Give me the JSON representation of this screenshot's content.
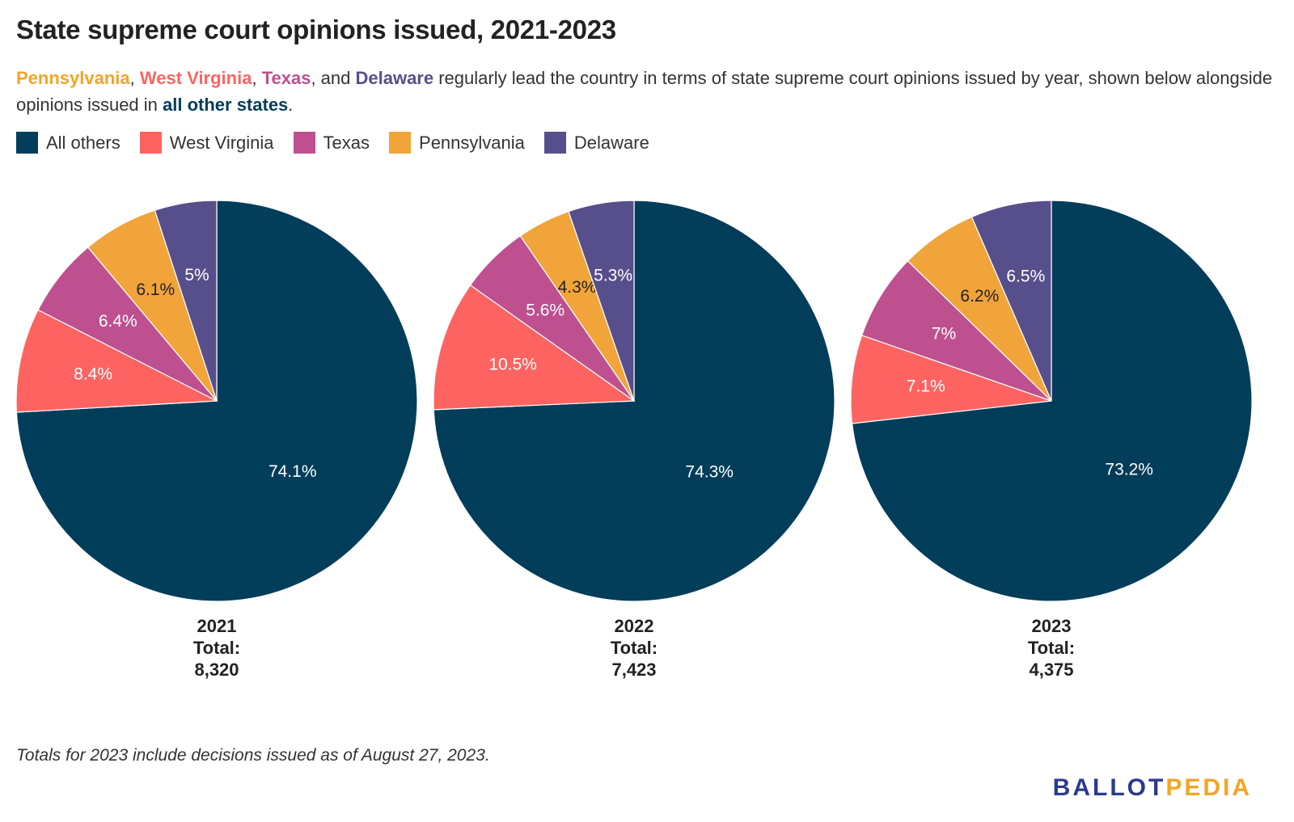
{
  "header": {
    "title": "State supreme court opinions issued, 2021-2023",
    "subtitle": {
      "pennsylvania": "Pennsylvania",
      "sep1": ", ",
      "west_virginia": "West Virginia",
      "sep2": ", ",
      "texas": "Texas",
      "sep3": ", and ",
      "delaware": "Delaware",
      "middle": " regularly lead the country in terms of state supreme court opinions issued by year, shown below alongside opinions issued in ",
      "all_other": "all other states",
      "end": "."
    }
  },
  "legend": [
    {
      "label": "All others",
      "color": "#023d5a"
    },
    {
      "label": "West Virginia",
      "color": "#fd6461"
    },
    {
      "label": "Texas",
      "color": "#bf5090"
    },
    {
      "label": "Pennsylvania",
      "color": "#f0a43a"
    },
    {
      "label": "Delaware",
      "color": "#574f8b"
    }
  ],
  "colors": {
    "pennsylvania": "#f3a526",
    "west_virginia": "#fd6461",
    "texas": "#bf5090",
    "delaware": "#574f8b",
    "all_others": "#023d5a"
  },
  "chart_data": [
    {
      "type": "pie",
      "year_label": "2021",
      "total_label": "Total:",
      "total_value": "8,320",
      "categories": [
        "All others",
        "West Virginia",
        "Texas",
        "Pennsylvania",
        "Delaware"
      ],
      "values": [
        74.1,
        8.4,
        6.4,
        6.1,
        5
      ],
      "labels": [
        "74.1%",
        "8.4%",
        "6.4%",
        "6.1%",
        "5%"
      ]
    },
    {
      "type": "pie",
      "year_label": "2022",
      "total_label": "Total:",
      "total_value": "7,423",
      "categories": [
        "All others",
        "West Virginia",
        "Texas",
        "Pennsylvania",
        "Delaware"
      ],
      "values": [
        74.3,
        10.5,
        5.6,
        4.3,
        5.3
      ],
      "labels": [
        "74.3%",
        "10.5%",
        "5.6%",
        "4.3%",
        "5.3%"
      ]
    },
    {
      "type": "pie",
      "year_label": "2023",
      "total_label": "Total:",
      "total_value": "4,375",
      "categories": [
        "All others",
        "West Virginia",
        "Texas",
        "Pennsylvania",
        "Delaware"
      ],
      "values": [
        73.2,
        7.1,
        7,
        6.2,
        6.5
      ],
      "labels": [
        "73.2%",
        "7.1%",
        "7%",
        "6.2%",
        "6.5%"
      ]
    }
  ],
  "footnote": "Totals for 2023 include decisions issued as of August 27, 2023.",
  "logo": {
    "part1": "BALLOT",
    "part2": "PEDIA"
  }
}
